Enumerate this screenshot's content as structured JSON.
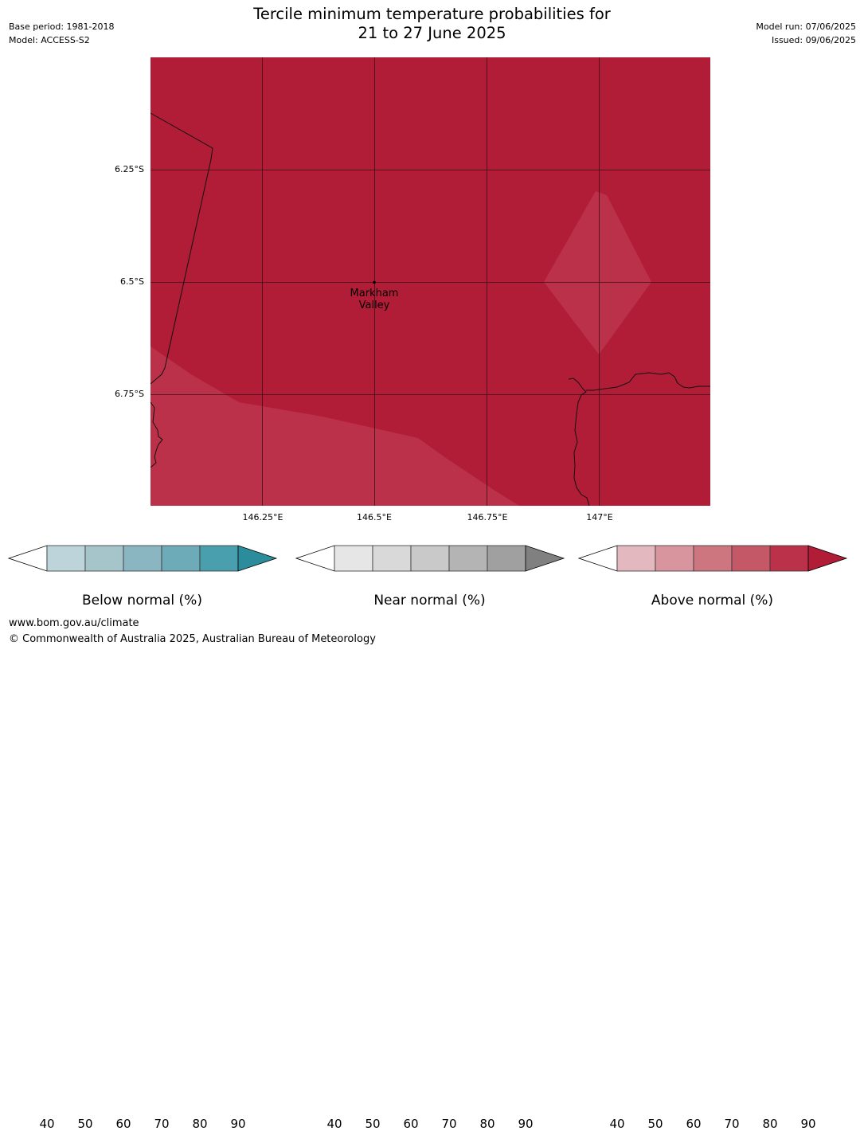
{
  "header": {
    "title_line1": "Tercile minimum temperature probabilities for",
    "title_line2": "21 to 27 June 2025",
    "base_period": "Base period: 1981-2018",
    "model": "Model: ACCESS-S2",
    "model_run": "Model run: 07/06/2025",
    "issued": "Issued: 09/06/2025"
  },
  "map": {
    "place_label_line1": "Markham",
    "place_label_line2": "Valley",
    "lat_labels": [
      "6.25°S",
      "6.5°S",
      "6.75°S"
    ],
    "lon_labels": [
      "146.25°E",
      "146.5°E",
      "146.75°E",
      "147°E"
    ],
    "colors": {
      "above_80_90": "#b11c37",
      "above_70_80": "#bb3149"
    }
  },
  "legends": [
    {
      "title": "Below normal (%)",
      "ticks": [
        "40",
        "50",
        "60",
        "70",
        "80",
        "90"
      ],
      "colors": [
        "#bdd4db",
        "#a6c5cb",
        "#8ab6c1",
        "#6eabb8",
        "#4a9fae",
        "#2b8d9c"
      ]
    },
    {
      "title": "Near normal (%)",
      "ticks": [
        "40",
        "50",
        "60",
        "70",
        "80",
        "90"
      ],
      "colors": [
        "#e6e6e6",
        "#d9d9d9",
        "#c9c9c9",
        "#b4b4b4",
        "#a0a0a0",
        "#808080"
      ]
    },
    {
      "title": "Above normal (%)",
      "ticks": [
        "40",
        "50",
        "60",
        "70",
        "80",
        "90"
      ],
      "colors": [
        "#e3b9bf",
        "#d8959e",
        "#cd7680",
        "#c55867",
        "#bb3149",
        "#b11c37"
      ]
    }
  ],
  "footer": {
    "url": "www.bom.gov.au/climate",
    "copyright": "© Commonwealth of Australia 2025, Australian Bureau of Meteorology"
  }
}
